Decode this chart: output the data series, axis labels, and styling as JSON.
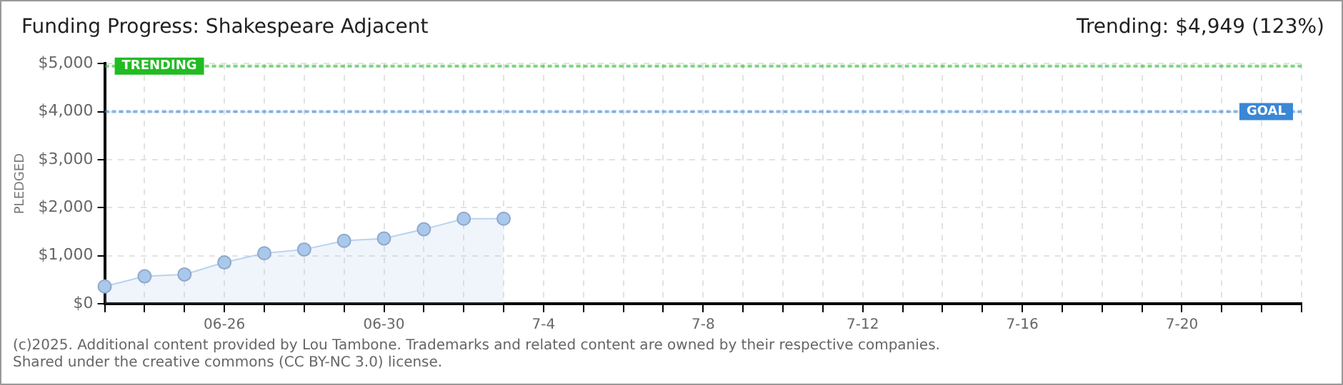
{
  "chart_data": {
    "type": "area",
    "title": "Funding Progress: Shakespeare Adjacent",
    "subtitle": "Trending: $4,949 (123%)",
    "ylabel": "PLEDGED",
    "categories": [
      null,
      null,
      null,
      "06-26",
      null,
      null,
      null,
      "06-30",
      null,
      null,
      null,
      "7-4",
      null,
      null,
      null,
      "7-8",
      null,
      null,
      null,
      "7-12",
      null,
      null,
      null,
      "7-16",
      null,
      null,
      null,
      "7-20",
      null,
      null,
      null
    ],
    "series": [
      {
        "color": "#a9c8ec",
        "values": [
          360,
          570,
          610,
          860,
          1050,
          1130,
          1310,
          1360,
          1550,
          1770,
          1770,
          null,
          null,
          null,
          null,
          null,
          null,
          null,
          null,
          null,
          null,
          null,
          null,
          null,
          null,
          null,
          null,
          null,
          null,
          null,
          null
        ]
      }
    ],
    "ylim": [
      0,
      5000
    ],
    "yticks": [
      {
        "value": 0,
        "label": "$0"
      },
      {
        "value": 1000,
        "label": "$1,000"
      },
      {
        "value": 2000,
        "label": "$2,000"
      },
      {
        "value": 3000,
        "label": "$3,000"
      },
      {
        "value": 4000,
        "label": "$4,000"
      },
      {
        "value": 5000,
        "label": "$5,000"
      }
    ],
    "ref_lines": [
      {
        "axis": "y",
        "value": 4949,
        "label": "TRENDING",
        "color": "#22bb22",
        "line_style": "dotted"
      },
      {
        "axis": "y",
        "value": 4000,
        "label": "GOAL",
        "color": "#3a87d6",
        "line_style": "dotted"
      }
    ],
    "grid": true,
    "legend": false,
    "marker": "circle",
    "annotations": [
      "(c)2025. Additional content provided by Lou Tambone. Trademarks and related content are owned by their respective companies.",
      "Shared under the creative commons (CC BY-NC 3.0) license."
    ]
  }
}
